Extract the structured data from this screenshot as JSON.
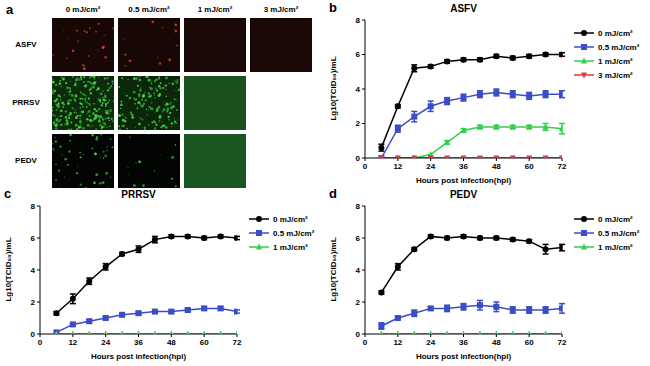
{
  "image_panel": {
    "panel_label": "a",
    "columns": [
      "0 mJ/cm²",
      "0.5 mJ/cm²",
      "1 mJ/cm²",
      "3 mJ/cm²"
    ],
    "rows": [
      {
        "label": "ASFV",
        "color": "#d8402c",
        "images": 4
      },
      {
        "label": "PRRSV",
        "color": "#46d846",
        "images": 3
      },
      {
        "label": "PEDV",
        "color": "#46d846",
        "images": 3
      }
    ]
  },
  "chart_data": [
    {
      "type": "line",
      "panel_label": "b",
      "title": "ASFV",
      "x_label": "Hours post infection(hpi)",
      "y_label": "Lg10(TCID₅₀)/mL",
      "x": [
        6,
        12,
        18,
        24,
        30,
        36,
        42,
        48,
        54,
        60,
        66,
        72
      ],
      "xlim": [
        0,
        72
      ],
      "xticks": [
        0,
        12,
        24,
        36,
        48,
        60,
        72
      ],
      "ylim": [
        0,
        8
      ],
      "yticks": [
        0,
        2,
        4,
        6,
        8
      ],
      "grid": false,
      "legend": "right",
      "series": [
        {
          "name": "0 mJ/cm²",
          "color": "#000000",
          "marker": "circle",
          "values": [
            0.6,
            3.0,
            5.2,
            5.3,
            5.6,
            5.7,
            5.7,
            5.9,
            5.8,
            5.9,
            6.0,
            6.0
          ],
          "errors": [
            0.2,
            0.1,
            0.2,
            0.1,
            0.1,
            0.1,
            0.1,
            0.1,
            0.1,
            0.1,
            0.1,
            0.1
          ]
        },
        {
          "name": "0.5 mJ/cm²",
          "color": "#3b4cc8",
          "marker": "square",
          "values": [
            0,
            1.7,
            2.4,
            3.0,
            3.3,
            3.5,
            3.7,
            3.8,
            3.7,
            3.6,
            3.7,
            3.7
          ],
          "errors": [
            0,
            0.2,
            0.3,
            0.3,
            0.2,
            0.2,
            0.2,
            0.2,
            0.2,
            0.2,
            0.2,
            0.2
          ]
        },
        {
          "name": "1 mJ/cm²",
          "color": "#2fd04a",
          "marker": "triangle",
          "values": [
            0,
            0,
            0,
            0.2,
            0.9,
            1.6,
            1.8,
            1.8,
            1.8,
            1.8,
            1.8,
            1.7
          ],
          "errors": [
            0,
            0,
            0,
            0,
            0.1,
            0.1,
            0.1,
            0.1,
            0.1,
            0.1,
            0.2,
            0.3
          ]
        },
        {
          "name": "3 mJ/cm²",
          "color": "#e8323c",
          "marker": "triangle-down",
          "values": [
            0,
            0,
            0,
            0,
            0,
            0,
            0,
            0,
            0,
            0,
            0,
            0
          ],
          "errors": [
            0,
            0,
            0,
            0,
            0,
            0,
            0,
            0,
            0,
            0,
            0,
            0
          ]
        }
      ]
    },
    {
      "type": "line",
      "panel_label": "c",
      "title": "PRRSV",
      "x_label": "Hours post infection(hpi)",
      "y_label": "Lg10(TCID₅₀)/mL",
      "x": [
        6,
        12,
        18,
        24,
        30,
        36,
        42,
        48,
        54,
        60,
        66,
        72
      ],
      "xlim": [
        0,
        72
      ],
      "xticks": [
        0,
        12,
        24,
        36,
        48,
        60,
        72
      ],
      "ylim": [
        0,
        8
      ],
      "yticks": [
        0,
        2,
        4,
        6,
        8
      ],
      "grid": false,
      "legend": "right",
      "series": [
        {
          "name": "0 mJ/cm²",
          "color": "#000000",
          "marker": "circle",
          "values": [
            1.3,
            2.2,
            3.3,
            4.2,
            5.0,
            5.3,
            5.9,
            6.1,
            6.1,
            6.0,
            6.1,
            6.0
          ],
          "errors": [
            0.1,
            0.3,
            0.2,
            0.2,
            0.1,
            0.2,
            0.2,
            0.1,
            0.1,
            0.1,
            0.1,
            0.1
          ]
        },
        {
          "name": "0.5 mJ/cm²",
          "color": "#3b4cc8",
          "marker": "square",
          "values": [
            0.1,
            0.6,
            0.8,
            1.0,
            1.2,
            1.3,
            1.4,
            1.4,
            1.5,
            1.6,
            1.6,
            1.4
          ],
          "errors": [
            0,
            0.1,
            0.1,
            0.1,
            0.1,
            0.1,
            0.1,
            0.1,
            0.1,
            0.1,
            0.1,
            0.1
          ]
        },
        {
          "name": "1 mJ/cm²",
          "color": "#2fd04a",
          "marker": "triangle",
          "values": [
            0,
            0,
            0,
            0,
            0,
            0,
            0,
            0,
            0,
            0,
            0,
            0
          ],
          "errors": [
            0,
            0,
            0,
            0,
            0,
            0,
            0,
            0,
            0,
            0,
            0,
            0
          ]
        }
      ]
    },
    {
      "type": "line",
      "panel_label": "d",
      "title": "PEDV",
      "x_label": "Hours post infection(hpi)",
      "y_label": "Lg10(TCID₅₀)/mL",
      "x": [
        6,
        12,
        18,
        24,
        30,
        36,
        42,
        48,
        54,
        60,
        66,
        72
      ],
      "xlim": [
        0,
        72
      ],
      "xticks": [
        0,
        12,
        24,
        36,
        48,
        60,
        72
      ],
      "ylim": [
        0,
        8
      ],
      "yticks": [
        0,
        2,
        4,
        6,
        8
      ],
      "grid": false,
      "legend": "right",
      "series": [
        {
          "name": "0 mJ/cm²",
          "color": "#000000",
          "marker": "circle",
          "values": [
            2.6,
            4.2,
            5.3,
            6.1,
            6.0,
            6.1,
            6.0,
            6.0,
            5.9,
            5.8,
            5.3,
            5.4
          ],
          "errors": [
            0.1,
            0.2,
            0.1,
            0.1,
            0.1,
            0.1,
            0.1,
            0.1,
            0.1,
            0.1,
            0.3,
            0.2
          ]
        },
        {
          "name": "0.5 mJ/cm²",
          "color": "#3b4cc8",
          "marker": "square",
          "values": [
            0.5,
            1.0,
            1.3,
            1.6,
            1.6,
            1.7,
            1.8,
            1.7,
            1.5,
            1.5,
            1.5,
            1.6
          ],
          "errors": [
            0.2,
            0.1,
            0.2,
            0.1,
            0.2,
            0.2,
            0.3,
            0.3,
            0.2,
            0.2,
            0.2,
            0.3
          ]
        },
        {
          "name": "1 mJ/cm²",
          "color": "#2fd04a",
          "marker": "triangle",
          "values": [
            0,
            0,
            0,
            0,
            0,
            0,
            0,
            0,
            0,
            0,
            0,
            0
          ],
          "errors": [
            0,
            0,
            0,
            0,
            0,
            0,
            0,
            0,
            0,
            0,
            0,
            0
          ]
        }
      ]
    }
  ]
}
